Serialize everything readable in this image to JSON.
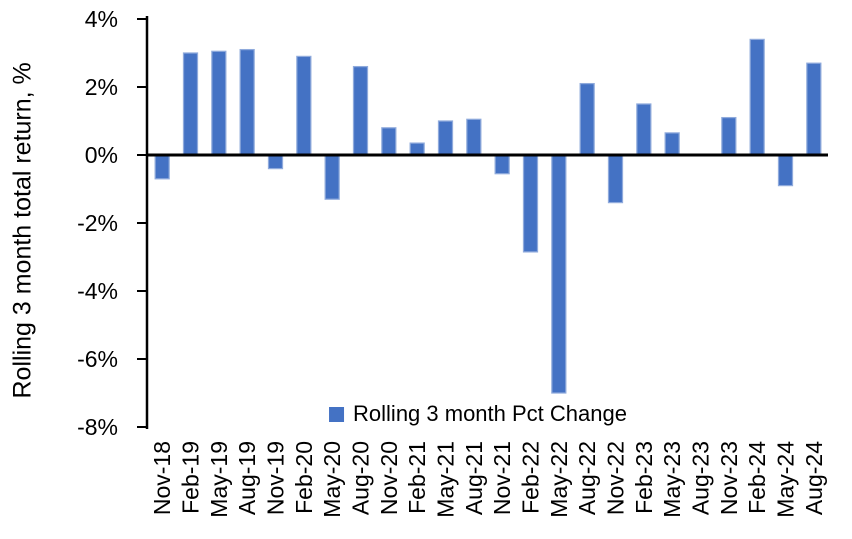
{
  "chart_data": {
    "type": "bar",
    "title": "",
    "ylabel": "Rolling 3 month total return, %",
    "xlabel": "",
    "categories": [
      "Nov-18",
      "Feb-19",
      "May-19",
      "Aug-19",
      "Nov-19",
      "Feb-20",
      "May-20",
      "Aug-20",
      "Nov-20",
      "Feb-21",
      "May-21",
      "Aug-21",
      "Nov-21",
      "Feb-22",
      "May-22",
      "Aug-22",
      "Nov-22",
      "Feb-23",
      "May-23",
      "Aug-23",
      "Nov-23",
      "Feb-24",
      "May-24",
      "Aug-24"
    ],
    "values": [
      -0.7,
      3.0,
      3.05,
      3.1,
      -0.4,
      2.9,
      -1.3,
      2.6,
      0.8,
      0.35,
      1.0,
      1.05,
      -0.55,
      -2.85,
      -7.0,
      2.1,
      -1.4,
      1.5,
      0.65,
      0.0,
      1.1,
      3.4,
      -0.9,
      2.7
    ],
    "ylim": [
      -8,
      4
    ],
    "ytick_step": 2,
    "ytick_values": [
      4,
      2,
      0,
      -2,
      -4,
      -6,
      -8
    ],
    "ytick_labels": [
      "4%",
      "2%",
      "0%",
      "-2%",
      "-4%",
      "-6%",
      "-8%"
    ],
    "grid": false,
    "legend_position": "bottom-center-inside",
    "legend": [
      {
        "label": "Rolling 3 month Pct Change",
        "color": "#4472C4"
      }
    ],
    "colors": {
      "bar_fill": "#4472C4",
      "bar_border": "#8FAADC",
      "axis": "#000000",
      "text": "#000000",
      "background": "#FFFFFF"
    }
  }
}
